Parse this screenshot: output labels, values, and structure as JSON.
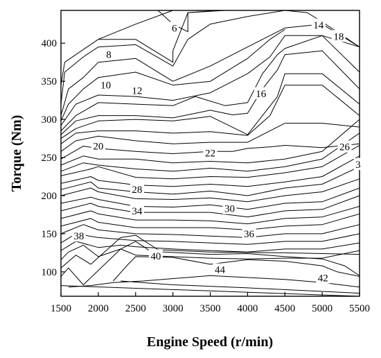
{
  "chart_data": {
    "type": "contour",
    "title": "",
    "xlabel": "Engine Speed (r/min)",
    "ylabel": "Torque (Nm)",
    "xlim": [
      1500,
      5500
    ],
    "ylim": [
      68,
      443
    ],
    "xticks": [
      1500,
      2000,
      2500,
      3000,
      3500,
      4000,
      4500,
      5000,
      5500
    ],
    "yticks": [
      100,
      150,
      200,
      250,
      300,
      350,
      400
    ],
    "grid": false,
    "legend": "none",
    "levels": [
      {
        "value": "6",
        "label": {
          "x": 3020,
          "y": 420
        }
      },
      {
        "value": "8",
        "label": {
          "x": 2140,
          "y": 385
        }
      },
      {
        "value": "10",
        "label": {
          "x": 2100,
          "y": 345
        }
      },
      {
        "value": "12",
        "label": {
          "x": 2520,
          "y": 338
        }
      },
      {
        "value": "14",
        "label": {
          "x": 4950,
          "y": 424
        }
      },
      {
        "value": "16",
        "label": {
          "x": 4180,
          "y": 334
        }
      },
      {
        "value": "18",
        "label": {
          "x": 5220,
          "y": 409
        }
      },
      {
        "value": "20",
        "label": {
          "x": 2000,
          "y": 265
        }
      },
      {
        "value": "22",
        "label": {
          "x": 3500,
          "y": 256
        }
      },
      {
        "value": "26",
        "label": {
          "x": 5300,
          "y": 264
        }
      },
      {
        "value": "28",
        "label": {
          "x": 2520,
          "y": 208
        }
      },
      {
        "value": "30",
        "label": {
          "x": 3760,
          "y": 183
        }
      },
      {
        "value": "34",
        "label": {
          "x": 2520,
          "y": 180
        }
      },
      {
        "value": "36",
        "label": {
          "x": 4020,
          "y": 150
        }
      },
      {
        "value": "38",
        "label": {
          "x": 1740,
          "y": 147
        }
      },
      {
        "value": "40",
        "label": {
          "x": 2770,
          "y": 121
        }
      },
      {
        "value": "42",
        "label": {
          "x": 5010,
          "y": 92
        }
      },
      {
        "value": "44",
        "label": {
          "x": 3630,
          "y": 103
        }
      },
      {
        "value": "3",
        "label": {
          "x": 5480,
          "y": 241
        }
      }
    ],
    "lines": [
      [
        [
          1500,
          345
        ],
        [
          1550,
          375
        ],
        [
          2000,
          405
        ],
        [
          2500,
          425
        ],
        [
          3000,
          443
        ]
      ],
      [
        [
          2000,
          405
        ],
        [
          2500,
          405
        ],
        [
          3000,
          375
        ],
        [
          3000,
          390
        ],
        [
          3200,
          440
        ],
        [
          3700,
          443
        ]
      ],
      [
        [
          2500,
          443
        ],
        [
          2800,
          443
        ],
        [
          3000,
          425
        ],
        [
          3200,
          415
        ],
        [
          3200,
          440
        ],
        [
          3600,
          443
        ]
      ],
      [
        [
          1500,
          320
        ],
        [
          1550,
          362
        ],
        [
          1800,
          382
        ],
        [
          2000,
          395
        ],
        [
          2500,
          398
        ],
        [
          3000,
          370
        ],
        [
          3200,
          405
        ],
        [
          3500,
          425
        ],
        [
          4000,
          435
        ],
        [
          4500,
          443
        ],
        [
          4800,
          440
        ],
        [
          5000,
          428
        ],
        [
          5500,
          395
        ]
      ],
      [
        [
          1500,
          305
        ],
        [
          1600,
          340
        ],
        [
          1800,
          355
        ],
        [
          2000,
          375
        ],
        [
          2500,
          380
        ],
        [
          3000,
          350
        ],
        [
          3500,
          370
        ],
        [
          4000,
          395
        ],
        [
          4500,
          420
        ],
        [
          5000,
          425
        ],
        [
          5500,
          395
        ]
      ],
      [
        [
          1500,
          298
        ],
        [
          1600,
          320
        ],
        [
          1800,
          340
        ],
        [
          2000,
          355
        ],
        [
          2500,
          362
        ],
        [
          3000,
          345
        ],
        [
          3500,
          350
        ],
        [
          4000,
          380
        ],
        [
          4300,
          405
        ],
        [
          4500,
          418
        ]
      ],
      [
        [
          1500,
          292
        ],
        [
          1700,
          320
        ],
        [
          2000,
          332
        ],
        [
          2500,
          330
        ],
        [
          3000,
          325
        ],
        [
          3500,
          335
        ],
        [
          4000,
          360
        ],
        [
          4300,
          382
        ],
        [
          4500,
          410
        ],
        [
          5000,
          410
        ],
        [
          5500,
          395
        ]
      ],
      [
        [
          1500,
          285
        ],
        [
          1700,
          305
        ],
        [
          2000,
          322
        ],
        [
          2500,
          320
        ],
        [
          3000,
          318
        ],
        [
          3300,
          330
        ],
        [
          3700,
          318
        ],
        [
          4000,
          322
        ],
        [
          4200,
          360
        ],
        [
          4400,
          385
        ],
        [
          4500,
          393
        ],
        [
          5000,
          410
        ],
        [
          5500,
          362
        ]
      ],
      [
        [
          1500,
          280
        ],
        [
          1700,
          298
        ],
        [
          2000,
          305
        ],
        [
          2500,
          305
        ],
        [
          3000,
          302
        ],
        [
          3500,
          312
        ],
        [
          3800,
          306
        ],
        [
          4000,
          308
        ],
        [
          4200,
          340
        ],
        [
          4400,
          365
        ],
        [
          4500,
          385
        ],
        [
          5000,
          390
        ],
        [
          5500,
          340
        ]
      ],
      [
        [
          1500,
          275
        ],
        [
          1700,
          288
        ],
        [
          2000,
          298
        ],
        [
          2500,
          300
        ],
        [
          3000,
          298
        ],
        [
          3500,
          304
        ],
        [
          4000,
          280
        ],
        [
          4400,
          330
        ],
        [
          4500,
          360
        ],
        [
          5000,
          360
        ],
        [
          5500,
          320
        ]
      ],
      [
        [
          1500,
          268
        ],
        [
          1700,
          282
        ],
        [
          2000,
          285
        ],
        [
          2500,
          285
        ],
        [
          3000,
          282
        ],
        [
          3500,
          284
        ],
        [
          4000,
          279
        ],
        [
          4300,
          305
        ],
        [
          4500,
          345
        ],
        [
          5000,
          345
        ],
        [
          5500,
          305
        ]
      ],
      [
        [
          1500,
          258
        ],
        [
          1700,
          272
        ],
        [
          2000,
          278
        ],
        [
          2500,
          272
        ],
        [
          3000,
          268
        ],
        [
          3500,
          270
        ],
        [
          4000,
          270
        ],
        [
          4500,
          295
        ],
        [
          5000,
          295
        ],
        [
          5500,
          290
        ]
      ],
      [
        [
          1500,
          248
        ],
        [
          1800,
          265
        ],
        [
          2000,
          262
        ],
        [
          2500,
          258
        ],
        [
          3000,
          255
        ],
        [
          3500,
          258
        ],
        [
          3800,
          258
        ],
        [
          4000,
          262
        ],
        [
          4300,
          264
        ],
        [
          4500,
          266
        ],
        [
          5000,
          263
        ],
        [
          5500,
          268
        ]
      ],
      [
        [
          1500,
          240
        ],
        [
          1800,
          252
        ],
        [
          2000,
          248
        ],
        [
          2500,
          248
        ],
        [
          3000,
          243
        ],
        [
          3500,
          245
        ],
        [
          4000,
          243
        ],
        [
          4500,
          248
        ],
        [
          5000,
          258
        ],
        [
          5500,
          300
        ]
      ],
      [
        [
          1500,
          232
        ],
        [
          1800,
          243
        ],
        [
          2000,
          240
        ],
        [
          2500,
          235
        ],
        [
          3000,
          232
        ],
        [
          3500,
          236
        ],
        [
          4000,
          232
        ],
        [
          4500,
          238
        ],
        [
          5000,
          248
        ],
        [
          5500,
          282
        ]
      ],
      [
        [
          1500,
          226
        ],
        [
          1900,
          235
        ],
        [
          2000,
          238
        ],
        [
          2500,
          224
        ],
        [
          3000,
          222
        ],
        [
          3500,
          225
        ],
        [
          4000,
          224
        ],
        [
          4500,
          230
        ],
        [
          5000,
          238
        ],
        [
          5500,
          266
        ]
      ],
      [
        [
          1500,
          216
        ],
        [
          1900,
          225
        ],
        [
          2000,
          220
        ],
        [
          2500,
          214
        ],
        [
          3000,
          212
        ],
        [
          3500,
          215
        ],
        [
          4000,
          212
        ],
        [
          4500,
          218
        ],
        [
          5000,
          225
        ],
        [
          5500,
          252
        ]
      ],
      [
        [
          1500,
          208
        ],
        [
          1900,
          218
        ],
        [
          2000,
          210
        ],
        [
          2500,
          205
        ],
        [
          3000,
          202
        ],
        [
          3500,
          206
        ],
        [
          4000,
          200
        ],
        [
          4500,
          210
        ],
        [
          5000,
          215
        ],
        [
          5500,
          238
        ]
      ],
      [
        [
          1500,
          200
        ],
        [
          1900,
          210
        ],
        [
          2000,
          205
        ],
        [
          2500,
          196
        ],
        [
          3000,
          195
        ],
        [
          3500,
          197
        ],
        [
          4000,
          192
        ],
        [
          4500,
          200
        ],
        [
          5000,
          205
        ],
        [
          5500,
          222
        ]
      ],
      [
        [
          1500,
          190
        ],
        [
          1900,
          198
        ],
        [
          2000,
          195
        ],
        [
          2500,
          186
        ],
        [
          3000,
          185
        ],
        [
          3500,
          188
        ],
        [
          4000,
          182
        ],
        [
          4500,
          190
        ],
        [
          5000,
          192
        ],
        [
          5500,
          210
        ]
      ],
      [
        [
          1500,
          180
        ],
        [
          1900,
          190
        ],
        [
          2000,
          186
        ],
        [
          2500,
          178
        ],
        [
          3000,
          178
        ],
        [
          3500,
          178
        ],
        [
          4000,
          172
        ],
        [
          4500,
          180
        ],
        [
          5000,
          182
        ],
        [
          5500,
          200
        ]
      ],
      [
        [
          1500,
          170
        ],
        [
          1900,
          180
        ],
        [
          2000,
          176
        ],
        [
          2500,
          168
        ],
        [
          3000,
          168
        ],
        [
          3500,
          167
        ],
        [
          4000,
          163
        ],
        [
          4500,
          170
        ],
        [
          5000,
          172
        ],
        [
          5500,
          186
        ]
      ],
      [
        [
          1500,
          160
        ],
        [
          1900,
          170
        ],
        [
          2000,
          165
        ],
        [
          2500,
          158
        ],
        [
          3000,
          158
        ],
        [
          3500,
          158
        ],
        [
          4000,
          155
        ],
        [
          4500,
          160
        ],
        [
          5000,
          162
        ],
        [
          5500,
          176
        ]
      ],
      [
        [
          1500,
          150
        ],
        [
          1800,
          162
        ],
        [
          2000,
          155
        ],
        [
          2500,
          150
        ],
        [
          3000,
          149
        ],
        [
          3500,
          147
        ],
        [
          4000,
          145
        ],
        [
          4500,
          150
        ],
        [
          5000,
          150
        ],
        [
          5500,
          162
        ]
      ],
      [
        [
          1500,
          138
        ],
        [
          1700,
          150
        ],
        [
          2000,
          145
        ],
        [
          2500,
          141
        ],
        [
          3000,
          140
        ],
        [
          3500,
          138
        ],
        [
          4000,
          136
        ],
        [
          4500,
          140
        ],
        [
          5000,
          140
        ],
        [
          5500,
          150
        ]
      ],
      [
        [
          1500,
          128
        ],
        [
          1700,
          140
        ],
        [
          2000,
          132
        ],
        [
          2300,
          135
        ],
        [
          2500,
          133
        ],
        [
          3000,
          130
        ],
        [
          3500,
          128
        ],
        [
          4000,
          126
        ],
        [
          4500,
          130
        ],
        [
          5000,
          130
        ],
        [
          5500,
          138
        ]
      ],
      [
        [
          1500,
          116
        ],
        [
          1600,
          126
        ],
        [
          1800,
          135
        ],
        [
          2000,
          120
        ],
        [
          2300,
          130
        ],
        [
          2500,
          122
        ],
        [
          3000,
          120
        ],
        [
          3500,
          118
        ],
        [
          4000,
          117
        ],
        [
          4500,
          118
        ],
        [
          5000,
          118
        ],
        [
          5500,
          128
        ]
      ],
      [
        [
          1500,
          105
        ],
        [
          1700,
          122
        ],
        [
          1900,
          110
        ],
        [
          2300,
          145
        ],
        [
          2500,
          148
        ],
        [
          2800,
          129
        ],
        [
          3500,
          126
        ],
        [
          4500,
          125
        ],
        [
          5000,
          124
        ],
        [
          5500,
          123
        ]
      ],
      [
        [
          1500,
          94
        ],
        [
          1600,
          105
        ],
        [
          1800,
          83
        ],
        [
          2300,
          130
        ],
        [
          2500,
          140
        ],
        [
          2700,
          127
        ],
        [
          3500,
          123
        ],
        [
          4000,
          124
        ],
        [
          4500,
          120
        ],
        [
          5000,
          117
        ],
        [
          5300,
          108
        ],
        [
          5500,
          95
        ]
      ],
      [
        [
          1600,
          80
        ],
        [
          1900,
          82
        ],
        [
          2200,
          86
        ],
        [
          2600,
          88
        ],
        [
          3500,
          95
        ],
        [
          4500,
          90
        ],
        [
          5000,
          86
        ],
        [
          5500,
          80
        ]
      ],
      [
        [
          2200,
          88
        ],
        [
          2400,
          110
        ],
        [
          2500,
          120
        ],
        [
          3000,
          119
        ],
        [
          3500,
          110
        ],
        [
          4000,
          116
        ],
        [
          4500,
          114
        ],
        [
          5000,
          108
        ],
        [
          5200,
          100
        ],
        [
          5500,
          94
        ]
      ],
      [
        [
          2300,
          88
        ],
        [
          3000,
          83
        ],
        [
          4000,
          79
        ],
        [
          5500,
          72
        ]
      ],
      [
        [
          1500,
          82
        ],
        [
          3500,
          75
        ],
        [
          5500,
          68
        ]
      ]
    ]
  }
}
